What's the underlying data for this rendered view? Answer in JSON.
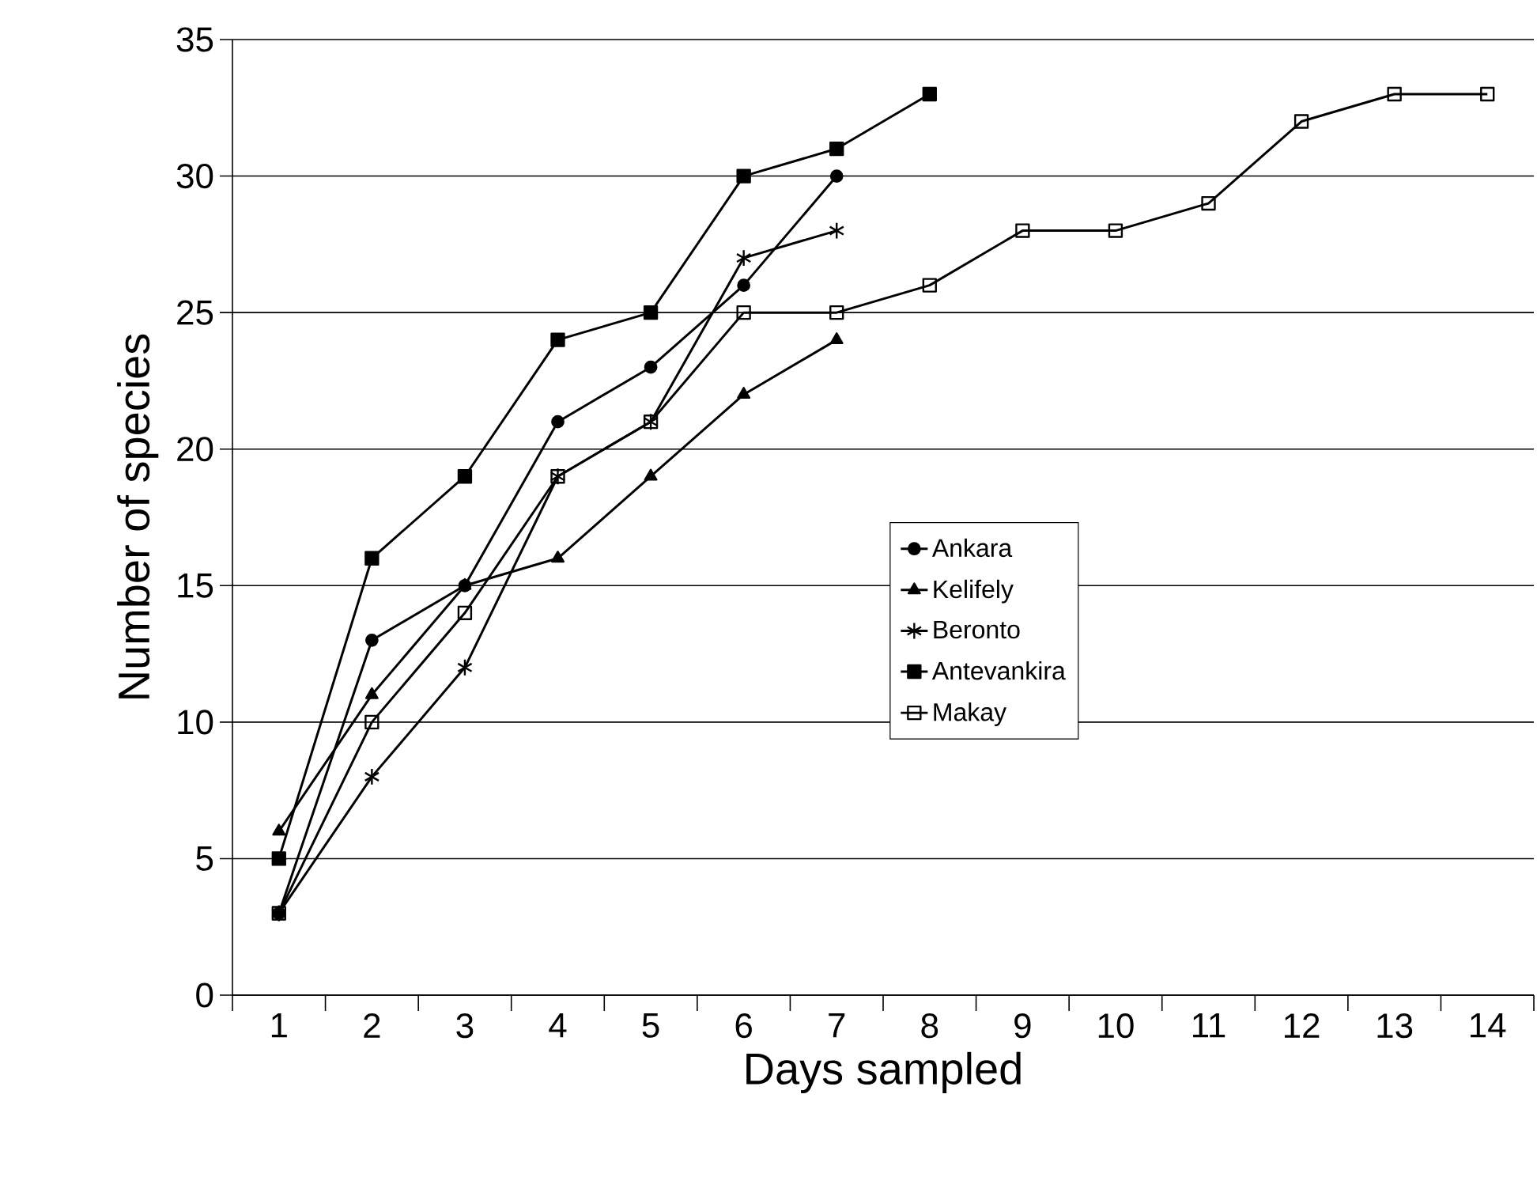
{
  "chart_data": {
    "type": "line",
    "xlabel": "Days sampled",
    "ylabel": "Number of species",
    "categories": [
      "1",
      "2",
      "3",
      "4",
      "5",
      "6",
      "7",
      "8",
      "9",
      "10",
      "11",
      "12",
      "13",
      "14"
    ],
    "ylim": [
      0,
      35
    ],
    "yticks": [
      0,
      5,
      10,
      15,
      20,
      25,
      30,
      35
    ],
    "grid": "y",
    "legend": "center",
    "line_style": "solid",
    "series": [
      {
        "name": "Ankara",
        "color": "#000000",
        "marker": "circle",
        "values": [
          3,
          13,
          15,
          21,
          23,
          26,
          30,
          null,
          null,
          null,
          null,
          null,
          null,
          null
        ]
      },
      {
        "name": "Kelifely",
        "color": "#000000",
        "marker": "triangle",
        "values": [
          6,
          11,
          15,
          16,
          19,
          22,
          24,
          null,
          null,
          null,
          null,
          null,
          null,
          null
        ]
      },
      {
        "name": "Beronto",
        "color": "#000000",
        "marker": "cross",
        "values": [
          3,
          8,
          12,
          19,
          21,
          27,
          28,
          null,
          null,
          null,
          null,
          null,
          null,
          null
        ]
      },
      {
        "name": "Antevankira",
        "color": "#000000",
        "marker": "square",
        "values": [
          5,
          16,
          19,
          24,
          25,
          30,
          31,
          33,
          null,
          null,
          null,
          null,
          null,
          null
        ]
      },
      {
        "name": "Makay",
        "color": "#000000",
        "marker": "square",
        "values": [
          3,
          10,
          14,
          19,
          21,
          25,
          25,
          26,
          28,
          28,
          29,
          32,
          33,
          33
        ]
      }
    ]
  }
}
